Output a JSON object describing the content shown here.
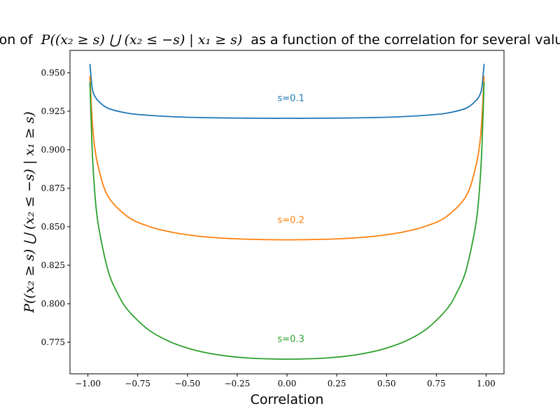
{
  "chart_data": {
    "type": "line",
    "title_prefix": "Evolution of",
    "title_math": "P((x₂ ≥ s) ⋃ (x₂ ≤ −s) | x₁ ≥ s)",
    "title_suffix": "as a function of the correlation for several values of s",
    "xlabel": "Correlation",
    "ylabel": "P((x₂ ≥ s) ⋃ (x₂ ≤ −s) | x₁ ≥ s)",
    "xlim": [
      -1.09,
      1.09
    ],
    "ylim": [
      0.7545,
      0.9645
    ],
    "x_ticks": [
      -1.0,
      -0.75,
      -0.5,
      -0.25,
      0.0,
      0.25,
      0.5,
      0.75,
      1.0
    ],
    "x_tick_labels": [
      "−1.00",
      "−0.75",
      "−0.50",
      "−0.25",
      "0.00",
      "0.25",
      "0.50",
      "0.75",
      "1.00"
    ],
    "y_ticks": [
      0.775,
      0.8,
      0.825,
      0.85,
      0.875,
      0.9,
      0.925,
      0.95
    ],
    "y_tick_labels": [
      "0.775",
      "0.800",
      "0.825",
      "0.850",
      "0.875",
      "0.900",
      "0.925",
      "0.950"
    ],
    "grid": false,
    "series": [
      {
        "name": "s=0.1",
        "color": "#1f77b4",
        "x": [
          -0.99,
          -0.98,
          -0.97,
          -0.95,
          -0.9,
          -0.8,
          -0.7,
          -0.6,
          -0.5,
          -0.4,
          -0.3,
          -0.2,
          -0.1,
          0.0,
          0.1,
          0.2,
          0.3,
          0.4,
          0.5,
          0.6,
          0.7,
          0.8,
          0.9,
          0.95,
          0.97,
          0.98,
          0.99
        ],
        "y": [
          0.9557,
          0.9415,
          0.936,
          0.932,
          0.927,
          0.9237,
          0.9224,
          0.9216,
          0.9211,
          0.9208,
          0.9206,
          0.9205,
          0.9204,
          0.9204,
          0.9204,
          0.9205,
          0.9206,
          0.9208,
          0.9211,
          0.9216,
          0.9224,
          0.9237,
          0.927,
          0.932,
          0.936,
          0.9415,
          0.9557
        ],
        "label": "s=0.1",
        "label_pos": [
          0.02,
          0.9316
        ]
      },
      {
        "name": "s=0.2",
        "color": "#ff7f0e",
        "x": [
          -0.99,
          -0.98,
          -0.97,
          -0.95,
          -0.9,
          -0.8,
          -0.7,
          -0.6,
          -0.5,
          -0.4,
          -0.3,
          -0.2,
          -0.1,
          0.0,
          0.1,
          0.2,
          0.3,
          0.4,
          0.5,
          0.6,
          0.7,
          0.8,
          0.9,
          0.95,
          0.97,
          0.98,
          0.99
        ],
        "y": [
          0.9478,
          0.922,
          0.906,
          0.89,
          0.87,
          0.8565,
          0.8505,
          0.847,
          0.8448,
          0.8433,
          0.8424,
          0.8419,
          0.8416,
          0.8415,
          0.8416,
          0.8419,
          0.8424,
          0.8433,
          0.8448,
          0.847,
          0.8505,
          0.8565,
          0.87,
          0.89,
          0.906,
          0.922,
          0.9478
        ],
        "label": "s=0.2",
        "label_pos": [
          0.02,
          0.8525
        ]
      },
      {
        "name": "s=0.3",
        "color": "#2ca02c",
        "x": [
          -0.99,
          -0.98,
          -0.97,
          -0.95,
          -0.9,
          -0.85,
          -0.8,
          -0.7,
          -0.6,
          -0.5,
          -0.4,
          -0.3,
          -0.2,
          -0.1,
          0.0,
          0.1,
          0.2,
          0.3,
          0.4,
          0.5,
          0.6,
          0.7,
          0.8,
          0.85,
          0.9,
          0.95,
          0.97,
          0.98,
          0.99
        ],
        "y": [
          0.944,
          0.905,
          0.88,
          0.853,
          0.822,
          0.8065,
          0.796,
          0.7835,
          0.776,
          0.7712,
          0.768,
          0.766,
          0.7648,
          0.7642,
          0.764,
          0.7642,
          0.7648,
          0.766,
          0.768,
          0.7712,
          0.776,
          0.7835,
          0.796,
          0.8065,
          0.822,
          0.853,
          0.88,
          0.905,
          0.944
        ],
        "label": "s=0.3",
        "label_pos": [
          0.02,
          0.7752
        ]
      }
    ]
  }
}
